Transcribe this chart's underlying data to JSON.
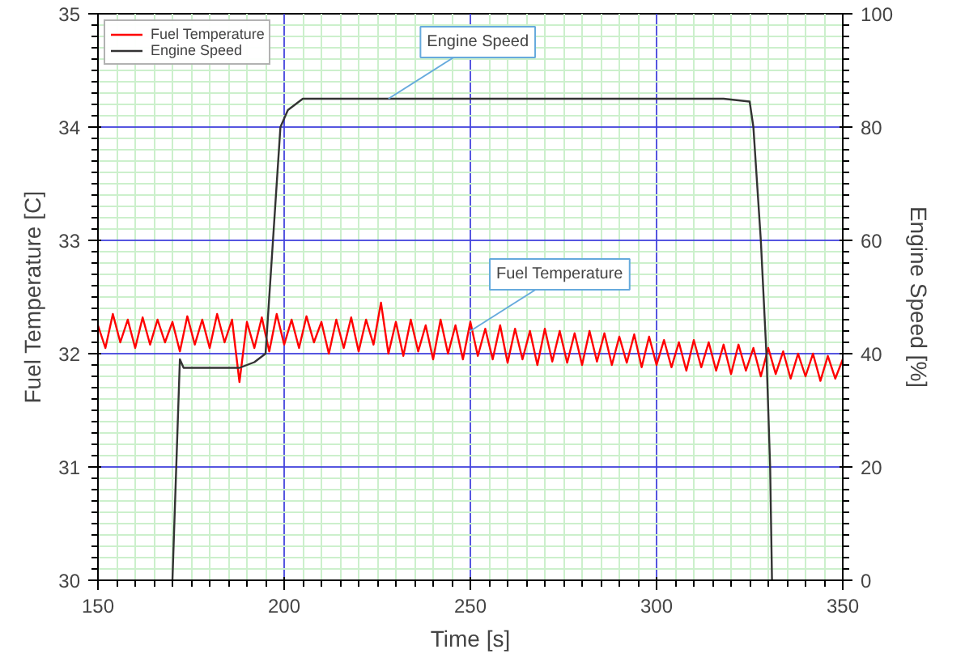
{
  "chart_data": {
    "type": "line",
    "xlabel": "Time [s]",
    "ylabel": "Fuel Temperature [C]",
    "y2label": "Engine Speed [%]",
    "xlim": [
      150,
      350
    ],
    "xticks": [
      150,
      200,
      250,
      300,
      350
    ],
    "ylim": [
      30,
      35
    ],
    "yticks": [
      30,
      31,
      32,
      33,
      34,
      35
    ],
    "y2lim": [
      0,
      100
    ],
    "y2ticks": [
      0,
      20,
      40,
      60,
      80,
      100
    ],
    "grid": true,
    "legend": "top left",
    "series": [
      {
        "name": "Fuel Temperature",
        "color": "#ff0000",
        "x": [
          150,
          152,
          154,
          156,
          158,
          160,
          162,
          164,
          166,
          168,
          170,
          172,
          174,
          176,
          178,
          180,
          182,
          184,
          186,
          188,
          190,
          192,
          194,
          196,
          198,
          200,
          202,
          204,
          206,
          208,
          210,
          212,
          214,
          216,
          218,
          220,
          222,
          224,
          226,
          228,
          230,
          232,
          234,
          236,
          238,
          240,
          242,
          244,
          246,
          248,
          250,
          252,
          254,
          256,
          258,
          260,
          262,
          264,
          266,
          268,
          270,
          272,
          274,
          276,
          278,
          280,
          282,
          284,
          286,
          288,
          290,
          292,
          294,
          296,
          298,
          300,
          302,
          304,
          306,
          308,
          310,
          312,
          314,
          316,
          318,
          320,
          322,
          324,
          326,
          328,
          330,
          332,
          334,
          336,
          338,
          340,
          342,
          344,
          346,
          348,
          350
        ],
        "values": [
          32.25,
          32.05,
          32.35,
          32.1,
          32.3,
          32.05,
          32.32,
          32.08,
          32.3,
          32.1,
          32.28,
          32.02,
          32.33,
          32.08,
          32.3,
          32.05,
          32.35,
          32.1,
          32.3,
          31.75,
          32.28,
          32.05,
          32.32,
          32.02,
          32.35,
          32.08,
          32.3,
          32.05,
          32.33,
          32.1,
          32.28,
          32.0,
          32.3,
          32.05,
          32.32,
          32.02,
          32.3,
          32.08,
          32.45,
          32.0,
          32.28,
          31.98,
          32.3,
          32.02,
          32.25,
          31.95,
          32.3,
          32.0,
          32.25,
          31.95,
          32.28,
          31.98,
          32.22,
          31.95,
          32.25,
          31.92,
          32.22,
          31.95,
          32.2,
          31.9,
          32.22,
          31.93,
          32.2,
          31.92,
          32.18,
          31.9,
          32.2,
          31.93,
          32.18,
          31.9,
          32.15,
          31.92,
          32.17,
          31.88,
          32.15,
          31.9,
          32.12,
          31.88,
          32.1,
          31.85,
          32.12,
          31.88,
          32.1,
          31.85,
          32.08,
          31.82,
          32.08,
          31.85,
          32.05,
          31.8,
          32.05,
          31.82,
          32.02,
          31.78,
          32.0,
          31.8,
          32.0,
          31.76,
          31.98,
          31.78,
          31.95
        ]
      },
      {
        "name": "Engine Speed",
        "color": "#333333",
        "axis": "y2",
        "x": [
          170,
          172,
          173,
          180,
          188,
          192,
          195,
          197,
          199,
          201,
          205,
          220,
          260,
          300,
          318,
          325,
          326,
          328,
          329.5,
          330.5,
          331
        ],
        "values": [
          0,
          39,
          37.5,
          37.5,
          37.5,
          38.5,
          40,
          60,
          80,
          83,
          85,
          85,
          85,
          85,
          85,
          84.5,
          80,
          60,
          40,
          20,
          0
        ]
      }
    ],
    "annotations": [
      {
        "text": "Engine Speed",
        "x": 228,
        "y": 34.25
      },
      {
        "text": "Fuel Temperature",
        "x": 250,
        "y": 32.2
      }
    ]
  }
}
